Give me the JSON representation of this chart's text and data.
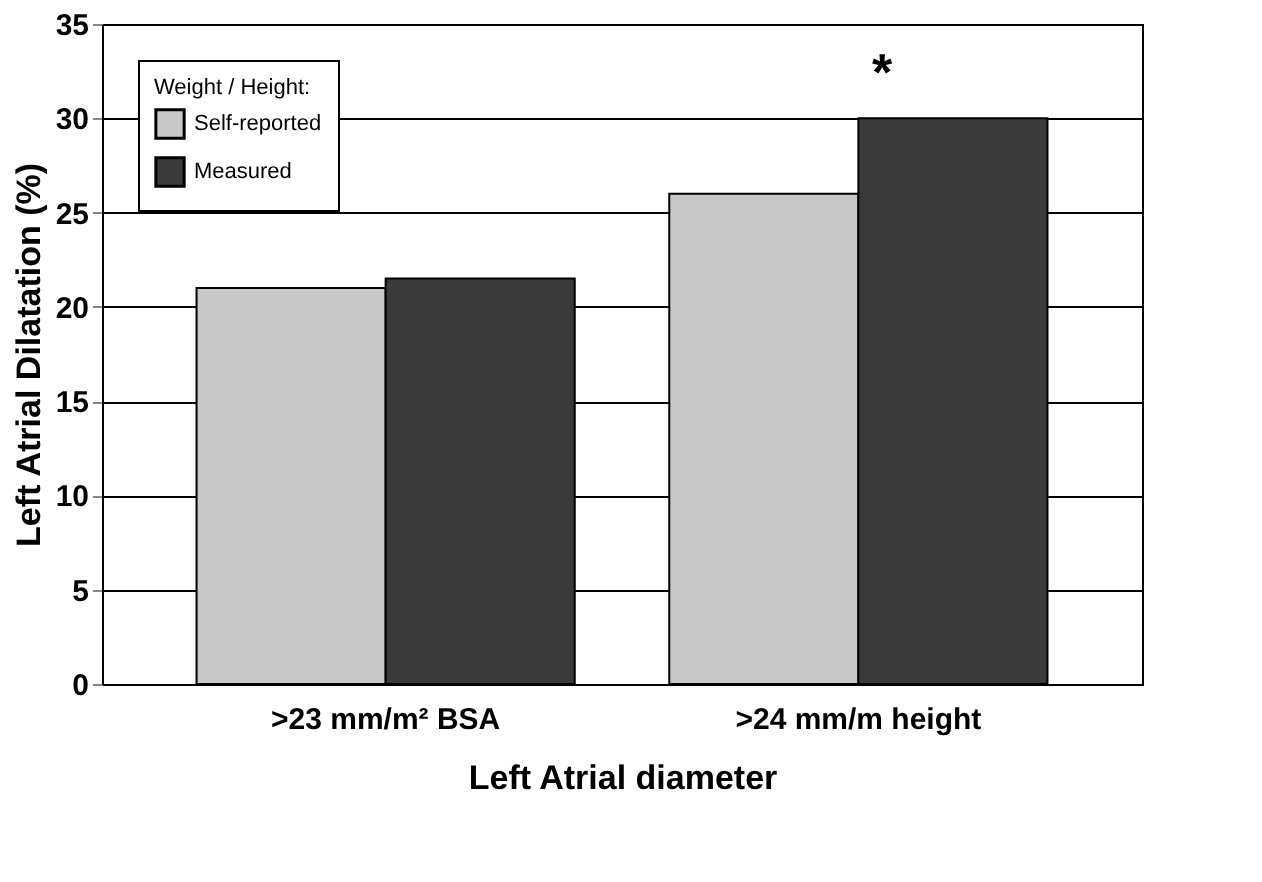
{
  "chart_data": {
    "type": "bar",
    "ylabel": "Left Atrial Dilatation (%)",
    "xlabel": "Left Atrial diameter",
    "legend_title": "Weight / Height:",
    "categories": [
      ">23 mm/m² BSA",
      ">24 mm/m height"
    ],
    "series": [
      {
        "name": "Self-reported",
        "color": "#c8c8c8",
        "values": [
          21,
          26
        ]
      },
      {
        "name": "Measured",
        "color": "#3a3a3a",
        "values": [
          21.5,
          30
        ]
      }
    ],
    "ylim": [
      0,
      35
    ],
    "yticks": [
      0,
      5,
      10,
      15,
      20,
      25,
      30,
      35
    ],
    "grid": "y",
    "legend": "top left",
    "annotations": [
      "*"
    ]
  }
}
